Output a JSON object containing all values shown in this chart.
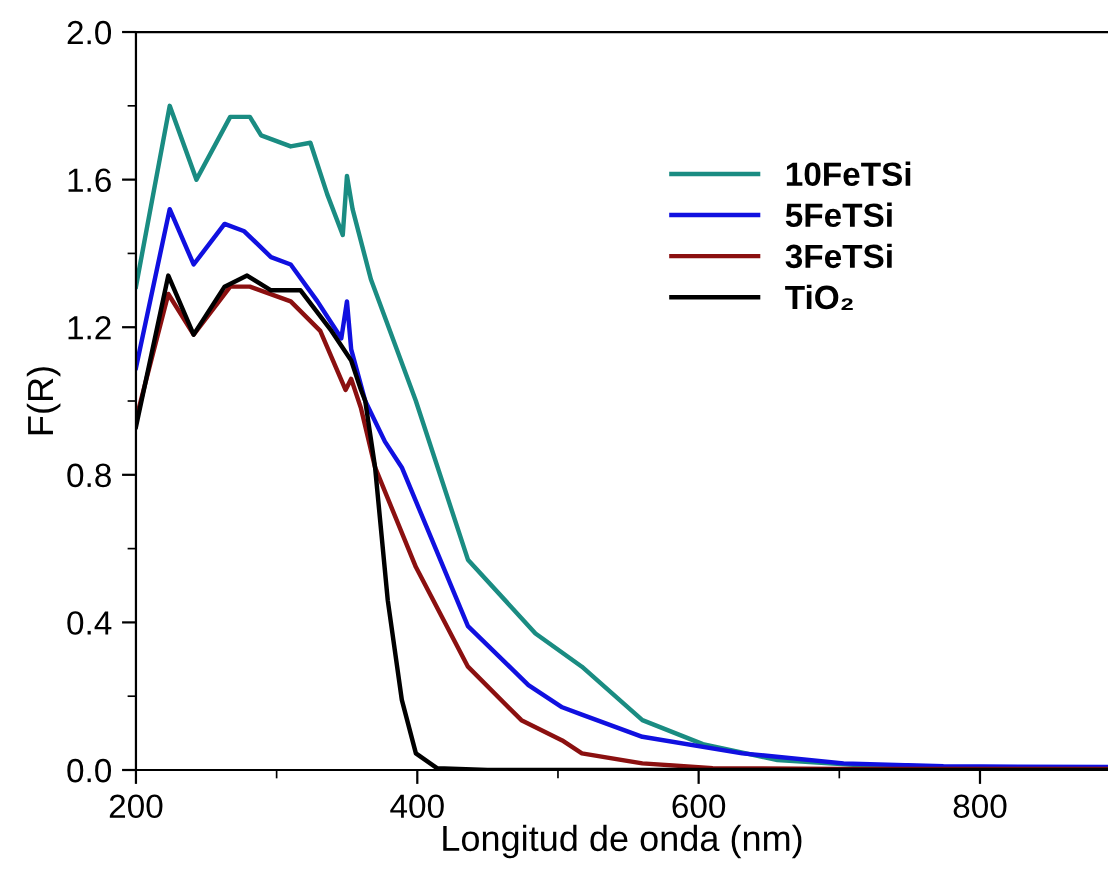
{
  "chart_data": {
    "type": "line",
    "xlabel": "Longitud de onda (nm)",
    "ylabel": "F(R)",
    "xlim": [
      200,
      891
    ],
    "ylim": [
      0.0,
      2.0
    ],
    "xticks": [
      200,
      400,
      600,
      800
    ],
    "yticks": [
      {
        "value": 0,
        "label": "0.0"
      },
      0.4,
      0.8,
      1.2,
      1.6,
      {
        "value": 2,
        "label": "2.0"
      }
    ],
    "grid": false,
    "legend": "right",
    "line_style": "solid",
    "marker": "none",
    "series": [
      {
        "name": "10FeTSi",
        "color": "#1a8c82",
        "x": [
          200,
          224,
          243,
          267,
          281,
          289,
          310,
          324,
          336,
          347,
          350,
          354,
          367,
          399,
          436,
          484,
          517,
          560,
          603,
          656,
          727,
          800
        ],
        "values": [
          1.31,
          1.8,
          1.6,
          1.77,
          1.77,
          1.72,
          1.69,
          1.7,
          1.56,
          1.45,
          1.61,
          1.52,
          1.33,
          1.0,
          0.57,
          0.37,
          0.28,
          0.135,
          0.07,
          0.027,
          0.01,
          0.006
        ]
      },
      {
        "name": "5FeTSi",
        "color": "#1010e0",
        "x": [
          200,
          224,
          241,
          263,
          277,
          296,
          310,
          329,
          346,
          350,
          353,
          363,
          377,
          389,
          436,
          479,
          503,
          517,
          560,
          631,
          703,
          774,
          891
        ],
        "values": [
          1.09,
          1.52,
          1.37,
          1.48,
          1.46,
          1.39,
          1.37,
          1.27,
          1.17,
          1.27,
          1.14,
          1.0,
          0.89,
          0.82,
          0.39,
          0.23,
          0.17,
          0.15,
          0.09,
          0.045,
          0.018,
          0.01,
          0.008
        ]
      },
      {
        "name": "3FeTSi",
        "color": "#8b1010",
        "x": [
          200,
          223,
          241,
          267,
          281,
          310,
          331,
          349,
          353,
          360,
          370,
          399,
          436,
          474,
          503,
          517,
          560,
          610,
          700,
          891
        ],
        "values": [
          0.95,
          1.29,
          1.18,
          1.31,
          1.31,
          1.27,
          1.19,
          1.03,
          1.06,
          0.98,
          0.82,
          0.55,
          0.28,
          0.135,
          0.08,
          0.045,
          0.018,
          0.005,
          0.003,
          0.003
        ]
      },
      {
        "name": "TiO₂",
        "color": "#000000",
        "x": [
          200,
          223,
          241,
          263,
          279,
          296,
          317,
          339,
          353,
          360,
          363,
          370,
          379,
          389,
          399,
          414,
          450,
          891
        ],
        "values": [
          0.93,
          1.34,
          1.18,
          1.31,
          1.34,
          1.3,
          1.3,
          1.19,
          1.11,
          1.03,
          1.0,
          0.82,
          0.46,
          0.19,
          0.045,
          0.005,
          0.0,
          0.0
        ]
      }
    ]
  }
}
